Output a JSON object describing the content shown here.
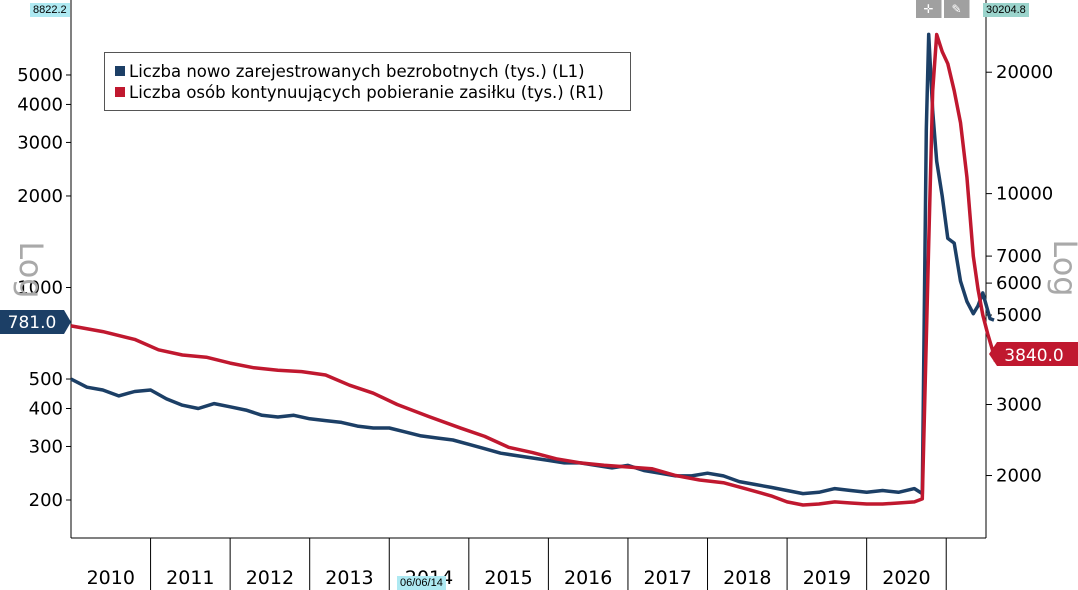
{
  "toolbar": {
    "top_left_value": "8822.2",
    "top_right_value": "30204.8",
    "date_marker": "06/06/14",
    "crosshair_icon": "crosshair-icon",
    "draw_icon": "pencil-icon"
  },
  "chart_data": {
    "type": "line",
    "x_axis": {
      "tick_labels": [
        "2010",
        "2011",
        "2012",
        "2013",
        "2014",
        "2015",
        "2016",
        "2017",
        "2018",
        "2019",
        "2020"
      ],
      "range": [
        2009.5,
        2021.0
      ]
    },
    "left_axis": {
      "scale": "log",
      "side_label": "Log",
      "tick_values": [
        200,
        300,
        400,
        500,
        1000,
        2000,
        3000,
        4000,
        5000
      ],
      "range": [
        150,
        8822.2
      ]
    },
    "right_axis": {
      "scale": "log",
      "side_label": "Log",
      "tick_values": [
        2000,
        3000,
        5000,
        6000,
        7000,
        10000,
        20000
      ],
      "range": [
        1400,
        30204.8
      ]
    },
    "series": [
      {
        "name": "Liczba nowo zarejestrowanych bezrobotnych (tys.) (L1)",
        "axis": "left",
        "color": "#1c3f66",
        "last_value": "781.0",
        "points": [
          [
            2009.5,
            500
          ],
          [
            2009.7,
            470
          ],
          [
            2009.9,
            460
          ],
          [
            2010.1,
            440
          ],
          [
            2010.3,
            455
          ],
          [
            2010.5,
            460
          ],
          [
            2010.7,
            430
          ],
          [
            2010.9,
            410
          ],
          [
            2011.1,
            400
          ],
          [
            2011.3,
            415
          ],
          [
            2011.5,
            405
          ],
          [
            2011.7,
            395
          ],
          [
            2011.9,
            380
          ],
          [
            2012.1,
            375
          ],
          [
            2012.3,
            380
          ],
          [
            2012.5,
            370
          ],
          [
            2012.7,
            365
          ],
          [
            2012.9,
            360
          ],
          [
            2013.1,
            350
          ],
          [
            2013.3,
            345
          ],
          [
            2013.5,
            345
          ],
          [
            2013.7,
            335
          ],
          [
            2013.9,
            325
          ],
          [
            2014.1,
            320
          ],
          [
            2014.3,
            315
          ],
          [
            2014.5,
            305
          ],
          [
            2014.7,
            295
          ],
          [
            2014.9,
            285
          ],
          [
            2015.1,
            280
          ],
          [
            2015.3,
            275
          ],
          [
            2015.5,
            270
          ],
          [
            2015.7,
            265
          ],
          [
            2015.9,
            265
          ],
          [
            2016.1,
            260
          ],
          [
            2016.3,
            255
          ],
          [
            2016.5,
            260
          ],
          [
            2016.7,
            250
          ],
          [
            2016.9,
            245
          ],
          [
            2017.1,
            240
          ],
          [
            2017.3,
            240
          ],
          [
            2017.5,
            245
          ],
          [
            2017.7,
            240
          ],
          [
            2017.9,
            230
          ],
          [
            2018.1,
            225
          ],
          [
            2018.3,
            220
          ],
          [
            2018.5,
            215
          ],
          [
            2018.7,
            210
          ],
          [
            2018.9,
            212
          ],
          [
            2019.1,
            218
          ],
          [
            2019.3,
            215
          ],
          [
            2019.5,
            212
          ],
          [
            2019.7,
            215
          ],
          [
            2019.9,
            212
          ],
          [
            2020.1,
            218
          ],
          [
            2020.2,
            210
          ],
          [
            2020.25,
            3300
          ],
          [
            2020.28,
            6800
          ],
          [
            2020.33,
            3800
          ],
          [
            2020.38,
            2600
          ],
          [
            2020.45,
            2000
          ],
          [
            2020.52,
            1450
          ],
          [
            2020.6,
            1400
          ],
          [
            2020.68,
            1050
          ],
          [
            2020.76,
            900
          ],
          [
            2020.84,
            820
          ],
          [
            2020.9,
            870
          ],
          [
            2020.96,
            960
          ],
          [
            2021.0,
            880
          ],
          [
            2021.05,
            790
          ],
          [
            2021.1,
            781
          ]
        ]
      },
      {
        "name": "Liczba osób kontynuujących pobieranie zasiłku (tys.) (R1)",
        "axis": "right",
        "color": "#c0182f",
        "last_value": "3840.0",
        "points": [
          [
            2009.5,
            4700
          ],
          [
            2009.9,
            4550
          ],
          [
            2010.3,
            4350
          ],
          [
            2010.6,
            4100
          ],
          [
            2010.9,
            3980
          ],
          [
            2011.2,
            3930
          ],
          [
            2011.5,
            3800
          ],
          [
            2011.8,
            3700
          ],
          [
            2012.1,
            3650
          ],
          [
            2012.4,
            3620
          ],
          [
            2012.7,
            3550
          ],
          [
            2013.0,
            3350
          ],
          [
            2013.3,
            3200
          ],
          [
            2013.6,
            3000
          ],
          [
            2014.0,
            2800
          ],
          [
            2014.4,
            2620
          ],
          [
            2014.7,
            2500
          ],
          [
            2015.0,
            2350
          ],
          [
            2015.3,
            2280
          ],
          [
            2015.6,
            2200
          ],
          [
            2015.9,
            2150
          ],
          [
            2016.2,
            2120
          ],
          [
            2016.5,
            2100
          ],
          [
            2016.8,
            2080
          ],
          [
            2017.1,
            2000
          ],
          [
            2017.4,
            1950
          ],
          [
            2017.7,
            1920
          ],
          [
            2018.0,
            1850
          ],
          [
            2018.3,
            1780
          ],
          [
            2018.5,
            1720
          ],
          [
            2018.7,
            1690
          ],
          [
            2018.9,
            1700
          ],
          [
            2019.1,
            1720
          ],
          [
            2019.3,
            1710
          ],
          [
            2019.5,
            1700
          ],
          [
            2019.7,
            1700
          ],
          [
            2019.9,
            1710
          ],
          [
            2020.1,
            1720
          ],
          [
            2020.2,
            1750
          ],
          [
            2020.28,
            7500
          ],
          [
            2020.33,
            18000
          ],
          [
            2020.38,
            24800
          ],
          [
            2020.45,
            22500
          ],
          [
            2020.52,
            21000
          ],
          [
            2020.6,
            18000
          ],
          [
            2020.68,
            15000
          ],
          [
            2020.76,
            11000
          ],
          [
            2020.84,
            7000
          ],
          [
            2020.9,
            5800
          ],
          [
            2020.96,
            5000
          ],
          [
            2021.02,
            4500
          ],
          [
            2021.08,
            4100
          ],
          [
            2021.12,
            3840
          ]
        ]
      }
    ]
  }
}
